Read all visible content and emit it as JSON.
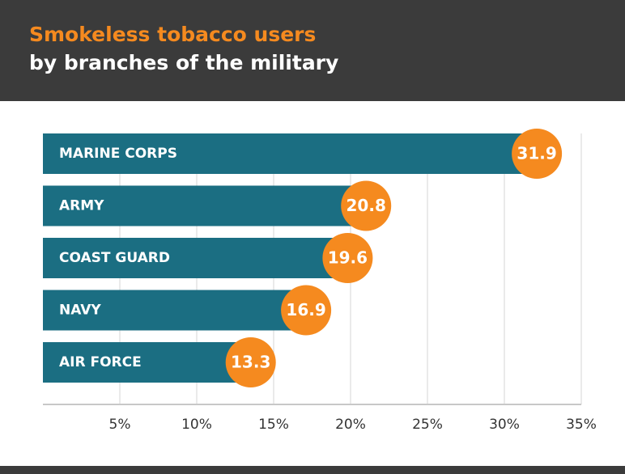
{
  "chart_data": {
    "type": "barh",
    "title": "Smokeless tobacco users",
    "subtitle": "by branches of the military",
    "categories": [
      "MARINE CORPS",
      "ARMY",
      "COAST GUARD",
      "NAVY",
      "AIR FORCE"
    ],
    "values": [
      31.9,
      20.8,
      19.6,
      16.9,
      13.3
    ],
    "color": "#1b6e82",
    "marker_color": "#f58a1f",
    "xlim": [
      0,
      35
    ],
    "xticks": [
      {
        "value": 5,
        "label": "5%"
      },
      {
        "value": 10,
        "label": "10%"
      },
      {
        "value": 15,
        "label": "15%"
      },
      {
        "value": 20,
        "label": "20%"
      },
      {
        "value": 25,
        "label": "25%"
      },
      {
        "value": 30,
        "label": "30%"
      },
      {
        "value": 35,
        "label": "35%"
      }
    ],
    "grid": true
  }
}
